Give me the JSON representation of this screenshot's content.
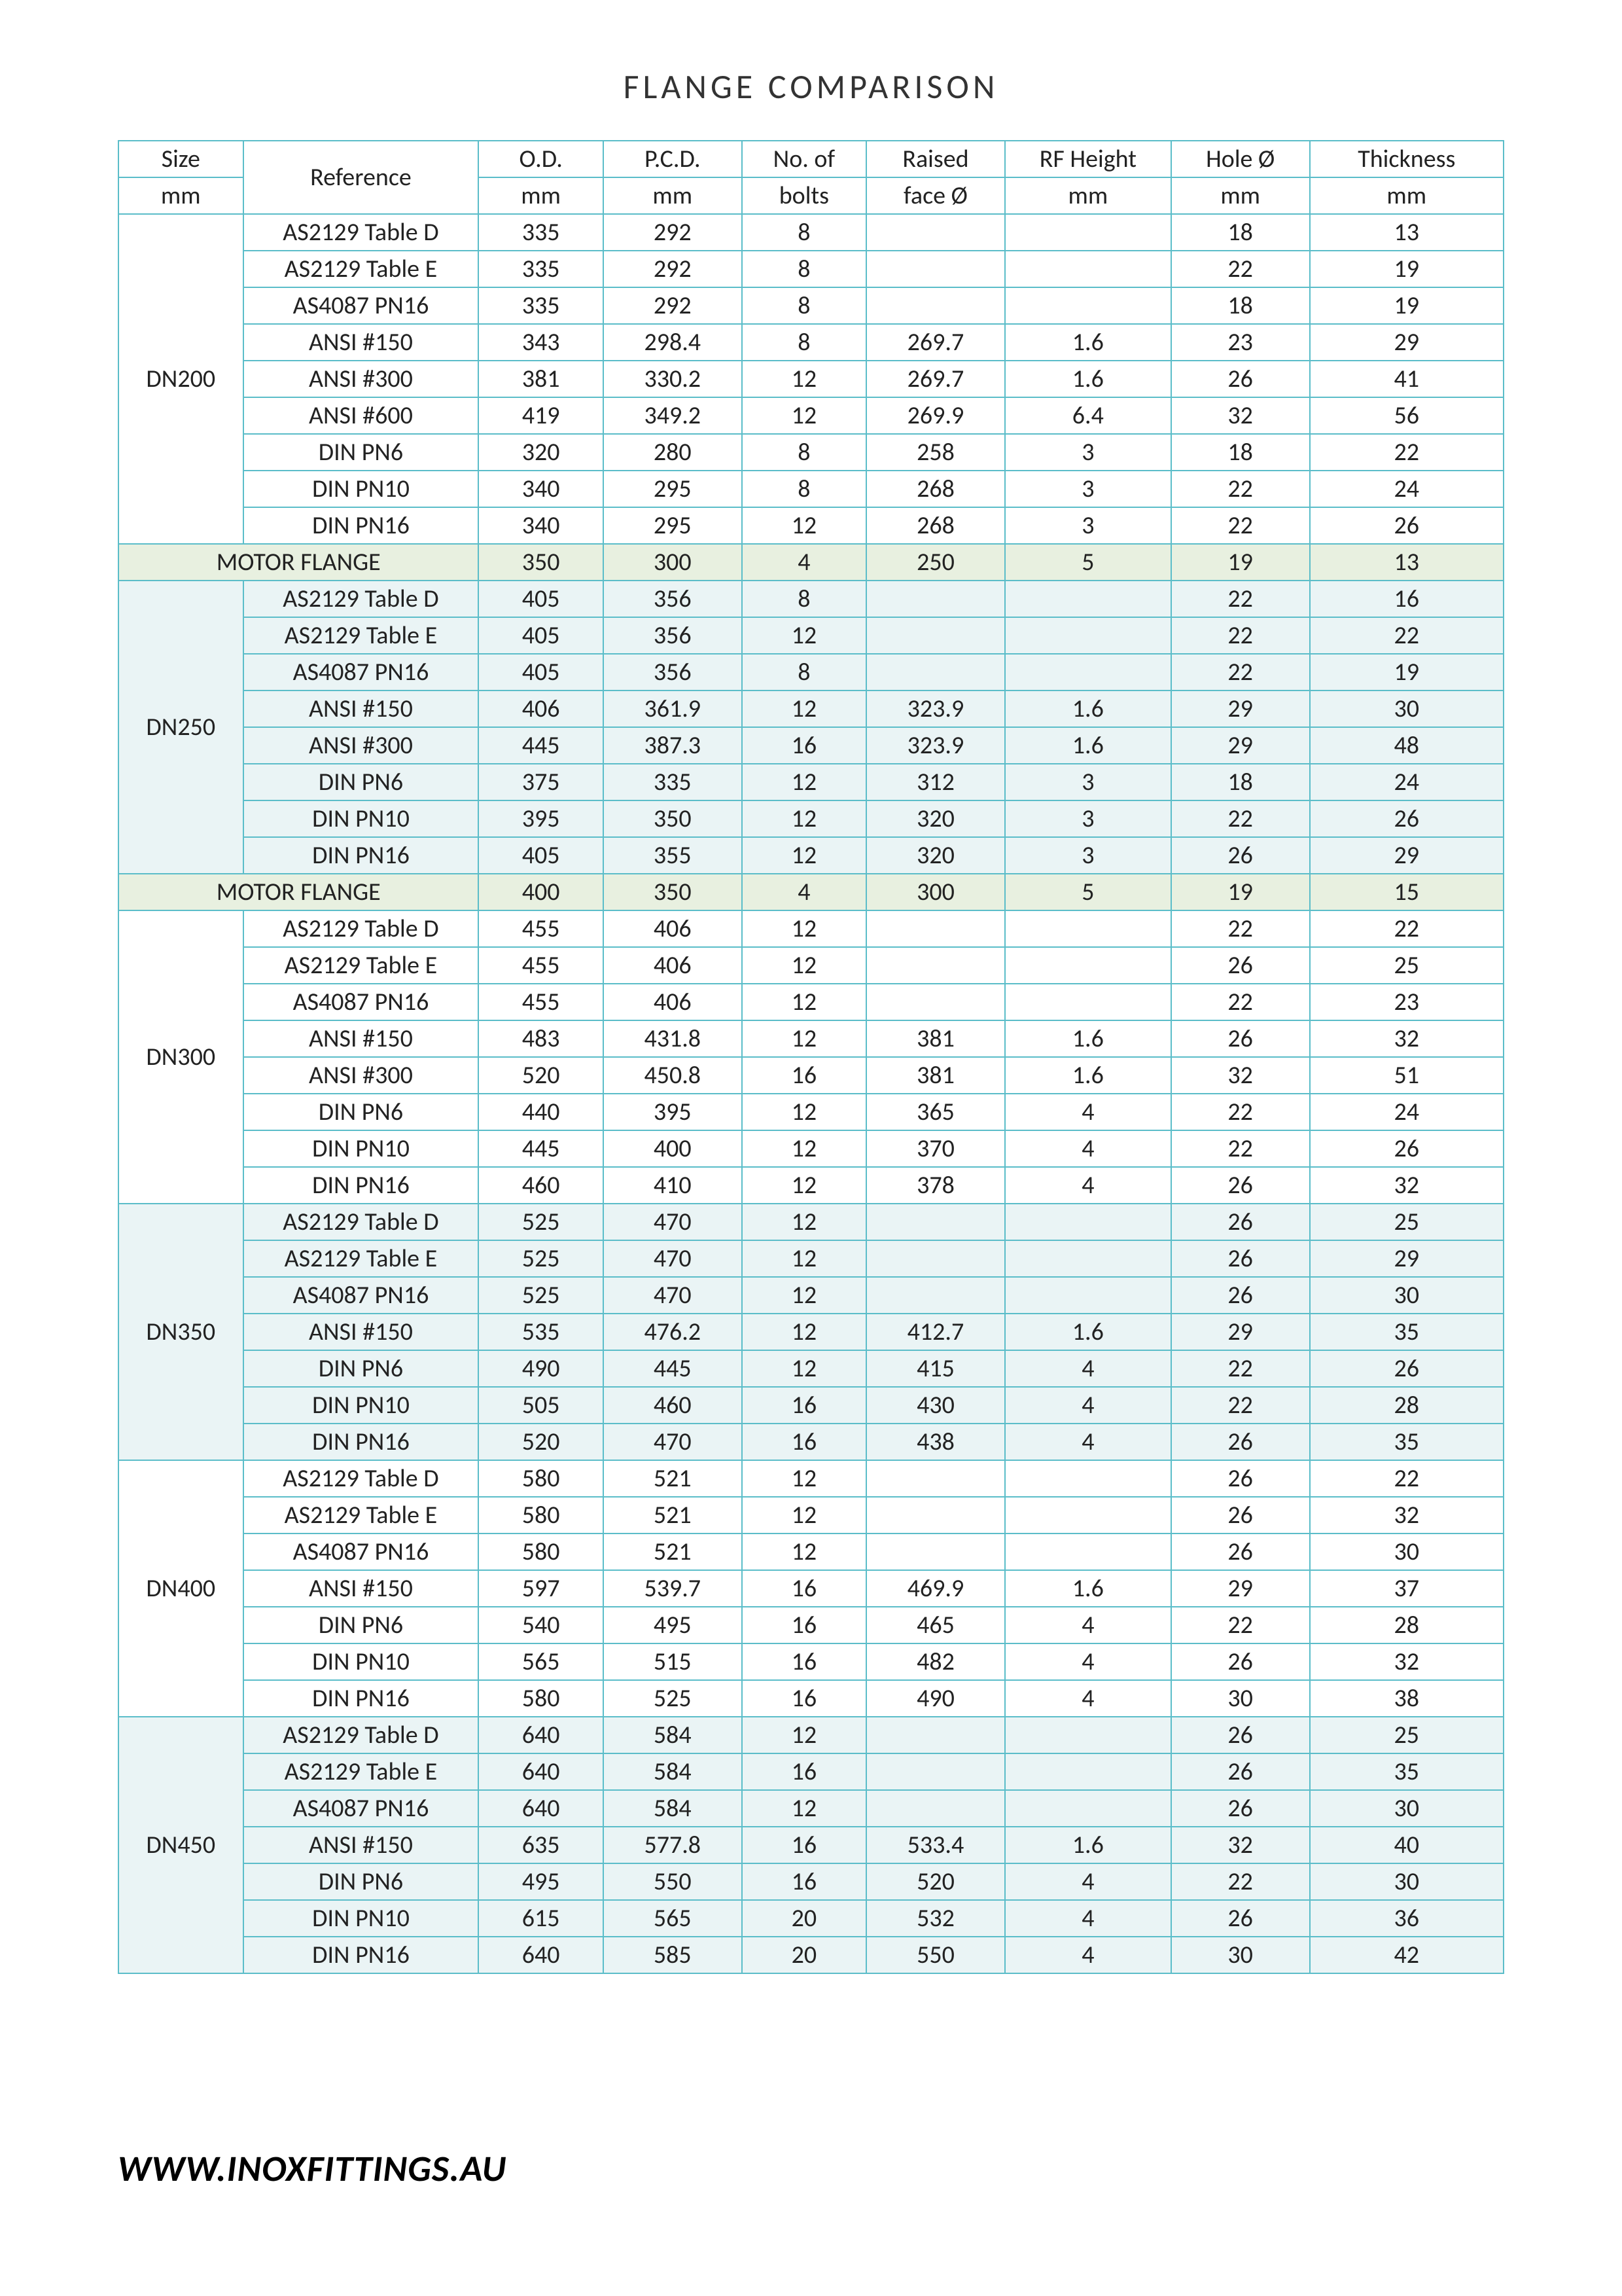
{
  "title": "FLANGE  COMPARISON",
  "footer": "WWW.INOXFITTINGS.AU",
  "columns": {
    "size_top": "Size",
    "size_bot": "mm",
    "ref": "Reference",
    "od_top": "O.D.",
    "od_bot": "mm",
    "pcd_top": "P.C.D.",
    "pcd_bot": "mm",
    "bolts_top": "No. of",
    "bolts_bot": "bolts",
    "rf_top": "Raised",
    "rf_bot": "face Ø",
    "rfh_top": "RF Height",
    "rfh_bot": "mm",
    "hole_top": "Hole Ø",
    "hole_bot": "mm",
    "thk_top": "Thickness",
    "thk_bot": "mm"
  },
  "motor_label": "MOTOR  FLANGE",
  "groups": [
    {
      "size": "DN200",
      "shade": false,
      "rows": [
        [
          "AS2129 Table D",
          "335",
          "292",
          "8",
          "",
          "",
          "18",
          "13"
        ],
        [
          "AS2129 Table E",
          "335",
          "292",
          "8",
          "",
          "",
          "22",
          "19"
        ],
        [
          "AS4087 PN16",
          "335",
          "292",
          "8",
          "",
          "",
          "18",
          "19"
        ],
        [
          "ANSI #150",
          "343",
          "298.4",
          "8",
          "269.7",
          "1.6",
          "23",
          "29"
        ],
        [
          "ANSI #300",
          "381",
          "330.2",
          "12",
          "269.7",
          "1.6",
          "26",
          "41"
        ],
        [
          "ANSI #600",
          "419",
          "349.2",
          "12",
          "269.9",
          "6.4",
          "32",
          "56"
        ],
        [
          "DIN PN6",
          "320",
          "280",
          "8",
          "258",
          "3",
          "18",
          "22"
        ],
        [
          "DIN PN10",
          "340",
          "295",
          "8",
          "268",
          "3",
          "22",
          "24"
        ],
        [
          "DIN PN16",
          "340",
          "295",
          "12",
          "268",
          "3",
          "22",
          "26"
        ]
      ],
      "motor": [
        "350",
        "300",
        "4",
        "250",
        "5",
        "19",
        "13"
      ]
    },
    {
      "size": "DN250",
      "shade": true,
      "rows": [
        [
          "AS2129 Table D",
          "405",
          "356",
          "8",
          "",
          "",
          "22",
          "16"
        ],
        [
          "AS2129 Table E",
          "405",
          "356",
          "12",
          "",
          "",
          "22",
          "22"
        ],
        [
          "AS4087 PN16",
          "405",
          "356",
          "8",
          "",
          "",
          "22",
          "19"
        ],
        [
          "ANSI #150",
          "406",
          "361.9",
          "12",
          "323.9",
          "1.6",
          "29",
          "30"
        ],
        [
          "ANSI #300",
          "445",
          "387.3",
          "16",
          "323.9",
          "1.6",
          "29",
          "48"
        ],
        [
          "DIN PN6",
          "375",
          "335",
          "12",
          "312",
          "3",
          "18",
          "24"
        ],
        [
          "DIN PN10",
          "395",
          "350",
          "12",
          "320",
          "3",
          "22",
          "26"
        ],
        [
          "DIN PN16",
          "405",
          "355",
          "12",
          "320",
          "3",
          "26",
          "29"
        ]
      ],
      "motor": [
        "400",
        "350",
        "4",
        "300",
        "5",
        "19",
        "15"
      ]
    },
    {
      "size": "DN300",
      "shade": false,
      "rows": [
        [
          "AS2129 Table D",
          "455",
          "406",
          "12",
          "",
          "",
          "22",
          "22"
        ],
        [
          "AS2129 Table E",
          "455",
          "406",
          "12",
          "",
          "",
          "26",
          "25"
        ],
        [
          "AS4087 PN16",
          "455",
          "406",
          "12",
          "",
          "",
          "22",
          "23"
        ],
        [
          "ANSI #150",
          "483",
          "431.8",
          "12",
          "381",
          "1.6",
          "26",
          "32"
        ],
        [
          "ANSI #300",
          "520",
          "450.8",
          "16",
          "381",
          "1.6",
          "32",
          "51"
        ],
        [
          "DIN PN6",
          "440",
          "395",
          "12",
          "365",
          "4",
          "22",
          "24"
        ],
        [
          "DIN PN10",
          "445",
          "400",
          "12",
          "370",
          "4",
          "22",
          "26"
        ],
        [
          "DIN PN16",
          "460",
          "410",
          "12",
          "378",
          "4",
          "26",
          "32"
        ]
      ]
    },
    {
      "size": "DN350",
      "shade": true,
      "rows": [
        [
          "AS2129 Table D",
          "525",
          "470",
          "12",
          "",
          "",
          "26",
          "25"
        ],
        [
          "AS2129 Table E",
          "525",
          "470",
          "12",
          "",
          "",
          "26",
          "29"
        ],
        [
          "AS4087 PN16",
          "525",
          "470",
          "12",
          "",
          "",
          "26",
          "30"
        ],
        [
          "ANSI #150",
          "535",
          "476.2",
          "12",
          "412.7",
          "1.6",
          "29",
          "35"
        ],
        [
          "DIN PN6",
          "490",
          "445",
          "12",
          "415",
          "4",
          "22",
          "26"
        ],
        [
          "DIN PN10",
          "505",
          "460",
          "16",
          "430",
          "4",
          "22",
          "28"
        ],
        [
          "DIN PN16",
          "520",
          "470",
          "16",
          "438",
          "4",
          "26",
          "35"
        ]
      ]
    },
    {
      "size": "DN400",
      "shade": false,
      "rows": [
        [
          "AS2129 Table D",
          "580",
          "521",
          "12",
          "",
          "",
          "26",
          "22"
        ],
        [
          "AS2129 Table E",
          "580",
          "521",
          "12",
          "",
          "",
          "26",
          "32"
        ],
        [
          "AS4087 PN16",
          "580",
          "521",
          "12",
          "",
          "",
          "26",
          "30"
        ],
        [
          "ANSI #150",
          "597",
          "539.7",
          "16",
          "469.9",
          "1.6",
          "29",
          "37"
        ],
        [
          "DIN PN6",
          "540",
          "495",
          "16",
          "465",
          "4",
          "22",
          "28"
        ],
        [
          "DIN PN10",
          "565",
          "515",
          "16",
          "482",
          "4",
          "26",
          "32"
        ],
        [
          "DIN PN16",
          "580",
          "525",
          "16",
          "490",
          "4",
          "30",
          "38"
        ]
      ]
    },
    {
      "size": "DN450",
      "shade": true,
      "rows": [
        [
          "AS2129 Table D",
          "640",
          "584",
          "12",
          "",
          "",
          "26",
          "25"
        ],
        [
          "AS2129 Table E",
          "640",
          "584",
          "16",
          "",
          "",
          "26",
          "35"
        ],
        [
          "AS4087 PN16",
          "640",
          "584",
          "12",
          "",
          "",
          "26",
          "30"
        ],
        [
          "ANSI #150",
          "635",
          "577.8",
          "16",
          "533.4",
          "1.6",
          "32",
          "40"
        ],
        [
          "DIN PN6",
          "495",
          "550",
          "16",
          "520",
          "4",
          "22",
          "30"
        ],
        [
          "DIN PN10",
          "615",
          "565",
          "20",
          "532",
          "4",
          "26",
          "36"
        ],
        [
          "DIN PN16",
          "640",
          "585",
          "20",
          "550",
          "4",
          "30",
          "42"
        ]
      ]
    }
  ],
  "style": {
    "border_color": "#5bbdc9",
    "motor_bg": "#e8f0e0",
    "shade_bg": "#eaf4f5",
    "font_size_table": 38,
    "font_size_title": 52,
    "font_size_footer": 56
  }
}
